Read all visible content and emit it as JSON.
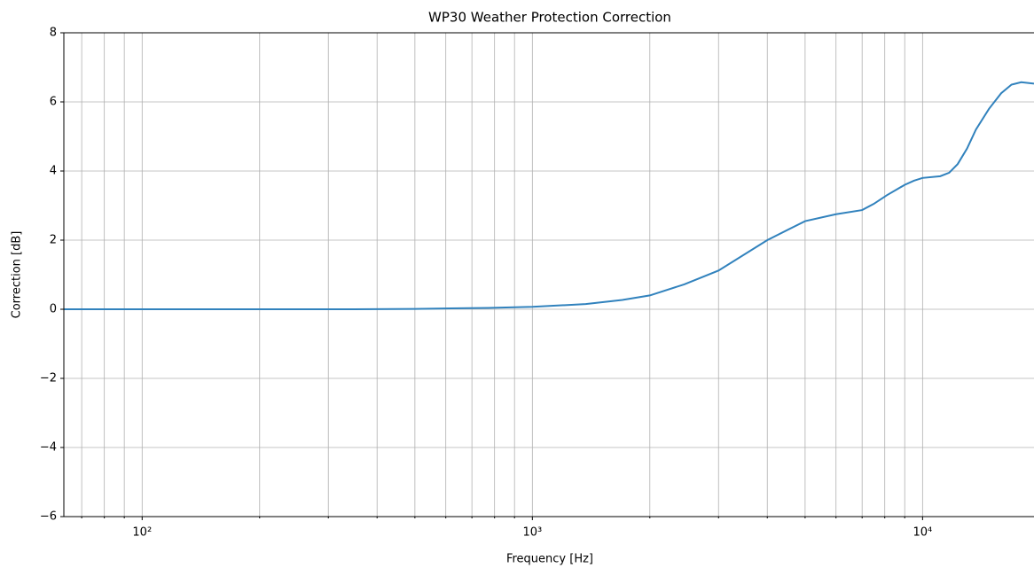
{
  "chart_data": {
    "type": "line",
    "title": "WP30 Weather Protection Correction",
    "xlabel": "Frequency [Hz]",
    "ylabel": "Correction [dB]",
    "xscale": "log",
    "grid": true,
    "x": [
      63,
      100,
      200,
      350,
      500,
      770,
      1000,
      1370,
      1700,
      2000,
      2450,
      3000,
      4000,
      5000,
      6000,
      7000,
      7500,
      8100,
      9000,
      9500,
      10000,
      11100,
      11700,
      12300,
      13000,
      13700,
      14800,
      15900,
      16900,
      17900,
      19300
    ],
    "series": [
      {
        "name": "WP30",
        "color": "#3182bd",
        "values": [
          0,
          0,
          0,
          0,
          0.01,
          0.04,
          0.07,
          0.15,
          0.27,
          0.4,
          0.72,
          1.12,
          2.0,
          2.55,
          2.75,
          2.87,
          3.05,
          3.3,
          3.6,
          3.72,
          3.8,
          3.85,
          3.95,
          4.2,
          4.65,
          5.2,
          5.8,
          6.25,
          6.5,
          6.57,
          6.53
        ]
      }
    ],
    "xlim": [
      63,
      19300
    ],
    "ylim": [
      -6,
      8
    ],
    "xticks": [
      {
        "value": 100,
        "label": "10²"
      },
      {
        "value": 1000,
        "label": "10³"
      },
      {
        "value": 10000,
        "label": "10⁴"
      }
    ],
    "xminorticks": [
      70,
      80,
      90,
      200,
      300,
      400,
      500,
      600,
      700,
      800,
      900,
      2000,
      3000,
      4000,
      5000,
      6000,
      7000,
      8000,
      9000
    ],
    "yticks": [
      {
        "value": -6,
        "label": "−6"
      },
      {
        "value": -4,
        "label": "−4"
      },
      {
        "value": -2,
        "label": "−2"
      },
      0,
      2,
      4,
      6,
      8
    ]
  }
}
